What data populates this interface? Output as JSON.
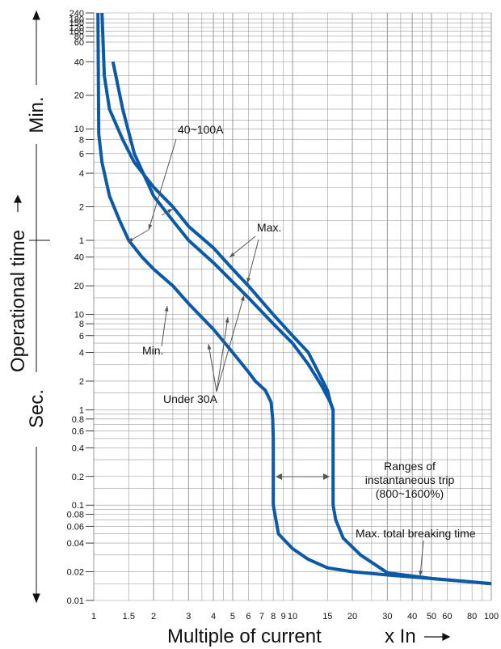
{
  "chart_data": {
    "type": "line",
    "title": "",
    "xlabel": "Multiple of current",
    "xunit_label": "x In",
    "ylabel": "Operational time",
    "y_sections": {
      "minutes": "Min.",
      "seconds": "Sec."
    },
    "x_scale": "log",
    "y_scale": "log",
    "x_ticks": [
      "1",
      "1.5",
      "2",
      "3",
      "4",
      "5",
      "6",
      "7",
      "8",
      "9",
      "10",
      "15",
      "20",
      "30",
      "40",
      "50",
      "60",
      "80",
      "100"
    ],
    "y_ticks_min": [
      "240",
      "180",
      "150",
      "120",
      "100",
      "80",
      "60",
      "40",
      "20",
      "10",
      "8",
      "6",
      "4",
      "2",
      "1"
    ],
    "y_ticks_sec": [
      "40",
      "20",
      "10",
      "8",
      "6",
      "4",
      "2",
      "1",
      "0.8",
      "0.6",
      "0.4",
      "0.2",
      "0.1",
      "0.08",
      "0.06",
      "0.04",
      "0.02",
      "0.01"
    ],
    "grid": true,
    "series": [
      {
        "name": "",
        "points": [
          [
            1.05,
            14400
          ],
          [
            1.06,
            540
          ],
          [
            1.1,
            300
          ],
          [
            1.2,
            150
          ],
          [
            1.35,
            90
          ],
          [
            1.5,
            60
          ],
          [
            1.75,
            40
          ],
          [
            2,
            30
          ],
          [
            2.5,
            20
          ],
          [
            3,
            13
          ],
          [
            4,
            7
          ],
          [
            5,
            4
          ],
          [
            6,
            2.5
          ],
          [
            6.5,
            2
          ],
          [
            7.3,
            1.6
          ],
          [
            7.8,
            1.2
          ],
          [
            7.95,
            0.8
          ],
          [
            8,
            0.5
          ],
          [
            8,
            0.1
          ],
          [
            8.5,
            0.05
          ],
          [
            10,
            0.035
          ],
          [
            12,
            0.027
          ],
          [
            15,
            0.022
          ],
          [
            20,
            0.02
          ],
          [
            30,
            0.0185
          ],
          [
            50,
            0.017
          ],
          [
            100,
            0.015
          ]
        ]
      },
      {
        "name": "",
        "points": [
          [
            1.1,
            14400
          ],
          [
            1.13,
            1800
          ],
          [
            1.2,
            900
          ],
          [
            1.4,
            480
          ],
          [
            1.6,
            300
          ],
          [
            2,
            180
          ],
          [
            2.5,
            120
          ],
          [
            3,
            80
          ],
          [
            4,
            50
          ],
          [
            5,
            30
          ],
          [
            6,
            20
          ],
          [
            8,
            10
          ],
          [
            10,
            6
          ],
          [
            12,
            4
          ],
          [
            15,
            1.6
          ],
          [
            15.5,
            1.2
          ],
          [
            16,
            1
          ],
          [
            16,
            0.1
          ],
          [
            16.5,
            0.07
          ],
          [
            18,
            0.045
          ],
          [
            22,
            0.03
          ],
          [
            30,
            0.0195
          ],
          [
            50,
            0.017
          ],
          [
            100,
            0.015
          ]
        ]
      }
    ],
    "annotations": [
      {
        "label": "40~100A"
      },
      {
        "label": "Max."
      },
      {
        "label": "Min."
      },
      {
        "label": "Under 30A"
      },
      {
        "label": "Ranges of\ninstantaneous trip\n(800~1600%)"
      },
      {
        "label": "Max. total breaking time"
      }
    ],
    "colors": {
      "curve": "#0c5aa6",
      "grid": "#9a9a9a",
      "text": "#111111"
    }
  }
}
